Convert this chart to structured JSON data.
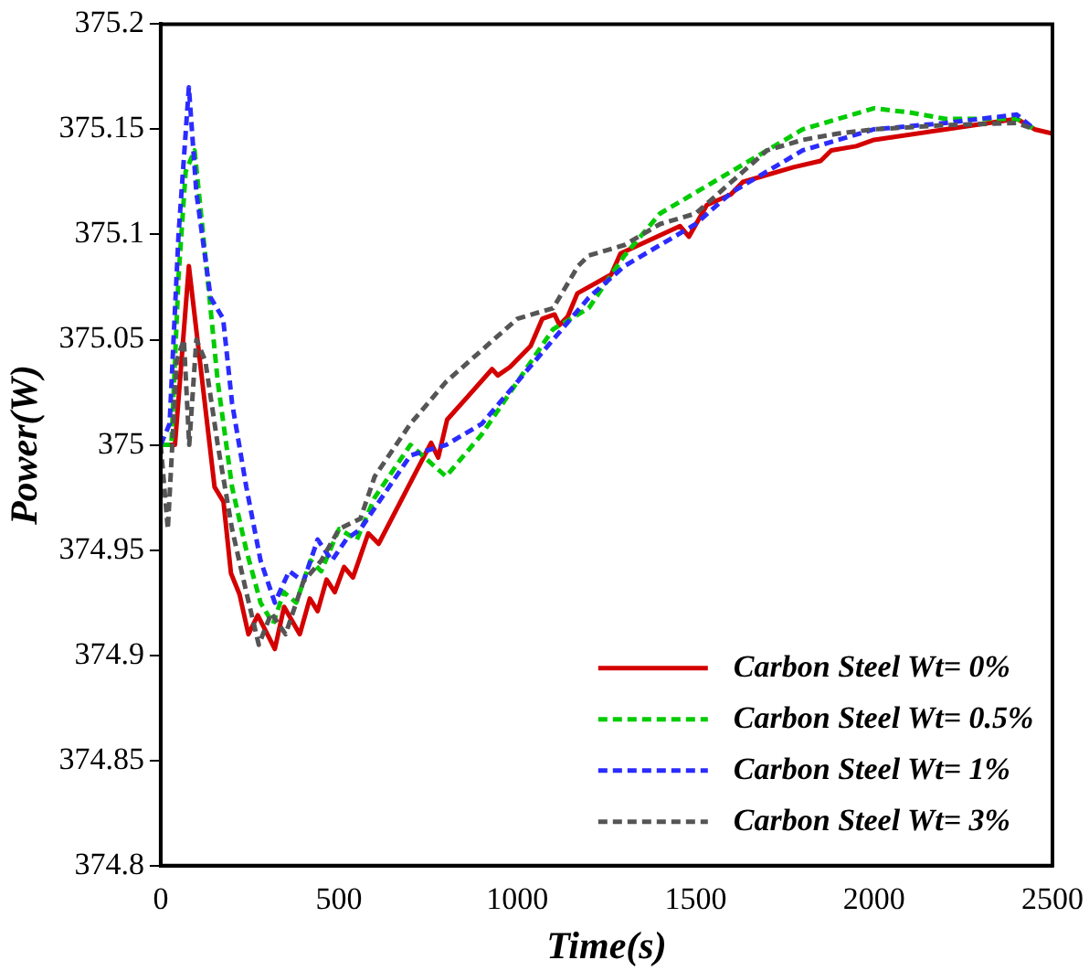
{
  "chart_data": {
    "type": "line",
    "xlabel": "Time(s)",
    "ylabel": "Power(W)",
    "xlim": [
      0,
      2500
    ],
    "xticks": [
      0,
      500,
      1000,
      1500,
      2000,
      2500
    ],
    "ylim": [
      374.8,
      375.2
    ],
    "yticks": [
      374.8,
      374.85,
      374.9,
      374.95,
      375,
      375.05,
      375.1,
      375.15,
      375.2
    ],
    "grid": false,
    "legend": "bottom right",
    "marker": "none",
    "series": [
      {
        "name": "Carbon Steel Wt= 0%",
        "color": "#d40000",
        "line_style": "solid",
        "x": [
          0,
          40,
          79,
          151,
          176,
          197,
          221,
          246,
          272,
          320,
          346,
          390,
          418,
          440,
          465,
          488,
          514,
          539,
          582,
          611,
          758,
          778,
          803,
          929,
          945,
          979,
          1037,
          1070,
          1104,
          1118,
          1141,
          1168,
          1263,
          1289,
          1456,
          1481,
          1531,
          1598,
          1632,
          1774,
          1850,
          1880,
          1950,
          2000,
          2200,
          2400,
          2450,
          2500
        ],
        "values": [
          375.0,
          375.0,
          375.085,
          374.98,
          374.973,
          374.939,
          374.929,
          374.91,
          374.919,
          374.903,
          374.923,
          374.91,
          374.927,
          374.921,
          374.936,
          374.93,
          374.942,
          374.937,
          374.958,
          374.953,
          375.001,
          374.994,
          375.012,
          375.036,
          375.033,
          375.037,
          375.047,
          375.06,
          375.062,
          375.057,
          375.061,
          375.072,
          375.081,
          375.091,
          375.104,
          375.099,
          375.114,
          375.119,
          375.125,
          375.132,
          375.135,
          375.14,
          375.142,
          375.145,
          375.15,
          375.155,
          375.15,
          375.148
        ]
      },
      {
        "name": "Carbon Steel Wt= 0.5%",
        "color": "#00cc00",
        "line_style": "dashed",
        "x": [
          0,
          30,
          50,
          70,
          95,
          125,
          160,
          200,
          240,
          280,
          315,
          345,
          380,
          420,
          450,
          500,
          550,
          600,
          700,
          800,
          900,
          1000,
          1100,
          1200,
          1300,
          1400,
          1500,
          1600,
          1700,
          1800,
          1900,
          2000,
          2100,
          2200,
          2300,
          2400,
          2450
        ],
        "values": [
          375.0,
          375.0,
          375.08,
          375.13,
          375.14,
          375.09,
          375.03,
          374.98,
          374.95,
          374.925,
          374.915,
          374.93,
          374.925,
          374.945,
          374.94,
          374.96,
          374.955,
          374.975,
          375.0,
          374.985,
          375.005,
          375.03,
          375.055,
          375.065,
          375.09,
          375.11,
          375.12,
          375.13,
          375.14,
          375.15,
          375.155,
          375.16,
          375.158,
          375.155,
          375.155,
          375.155,
          375.15
        ]
      },
      {
        "name": "Carbon Steel Wt= 1%",
        "color": "#2b2bff",
        "line_style": "dashed",
        "x": [
          0,
          25,
          50,
          79,
          100,
          140,
          175,
          200,
          240,
          280,
          320,
          360,
          400,
          440,
          480,
          520,
          560,
          600,
          700,
          800,
          900,
          1000,
          1100,
          1200,
          1300,
          1400,
          1500,
          1600,
          1700,
          1800,
          1900,
          2000,
          2200,
          2400,
          2450
        ],
        "values": [
          375.0,
          375.01,
          375.1,
          375.17,
          375.12,
          375.07,
          375.06,
          375.02,
          374.98,
          374.945,
          374.925,
          374.94,
          374.935,
          374.955,
          374.945,
          374.955,
          374.96,
          374.97,
          374.995,
          375.0,
          375.01,
          375.03,
          375.05,
          375.07,
          375.085,
          375.095,
          375.105,
          375.12,
          375.13,
          375.14,
          375.145,
          375.15,
          375.153,
          375.157,
          375.15
        ]
      },
      {
        "name": "Carbon Steel Wt= 3%",
        "color": "#555555",
        "line_style": "dashed",
        "x": [
          0,
          20,
          45,
          65,
          80,
          100,
          125,
          160,
          200,
          240,
          275,
          310,
          350,
          400,
          450,
          500,
          560,
          600,
          700,
          800,
          900,
          1000,
          1100,
          1170,
          1200,
          1300,
          1400,
          1500,
          1600,
          1700,
          1800,
          1900,
          2000,
          2200,
          2400,
          2450
        ],
        "values": [
          375.0,
          374.96,
          375.04,
          375.05,
          375.0,
          375.05,
          375.04,
          375.0,
          374.96,
          374.93,
          374.905,
          374.92,
          374.91,
          374.935,
          374.945,
          374.96,
          374.965,
          374.985,
          375.01,
          375.03,
          375.045,
          375.06,
          375.065,
          375.085,
          375.09,
          375.095,
          375.105,
          375.11,
          375.125,
          375.14,
          375.145,
          375.148,
          375.15,
          375.152,
          375.153,
          375.15
        ]
      }
    ]
  }
}
